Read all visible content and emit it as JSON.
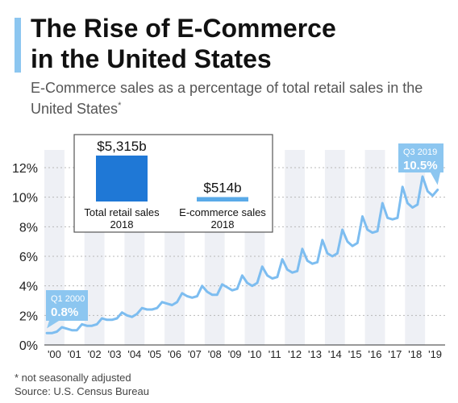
{
  "header": {
    "title_line1": "The Rise of E-Commerce",
    "title_line2": "in the United States",
    "subtitle": "E-Commerce sales as a percentage of total retail sales in the United States",
    "subtitle_mark": "*"
  },
  "inset": {
    "bars": [
      {
        "value_label": "$5,315b",
        "label_line1": "Total retail sales",
        "label_line2": "2018",
        "value": 5315
      },
      {
        "value_label": "$514b",
        "label_line1": "E-commerce sales",
        "label_line2": "2018",
        "value": 514
      }
    ],
    "colors": {
      "total": "#1f78d6",
      "ecommerce": "#5aaae8"
    }
  },
  "footer": {
    "note": "* not seasonally adjusted",
    "source": "Source: U.S. Census Bureau"
  },
  "colors": {
    "line": "#7dbdf0",
    "callout": "#8cc6f0",
    "band": "#eef0f5",
    "grid": "#b8b8b8",
    "text": "#111111"
  },
  "chart_data": {
    "type": "line",
    "title": "The Rise of E-Commerce in the United States",
    "ylabel": "",
    "xlabel": "",
    "ylim": [
      0,
      12
    ],
    "y_ticks": [
      0,
      2,
      4,
      6,
      8,
      10,
      12
    ],
    "y_tick_labels": [
      "0%",
      "2%",
      "4%",
      "6%",
      "8%",
      "10%",
      "12%"
    ],
    "x_tick_labels": [
      "'00",
      "'01",
      "'02",
      "'03",
      "'04",
      "'05",
      "'06",
      "'07",
      "'08",
      "'09",
      "'10",
      "'11",
      "'12",
      "'13",
      "'14",
      "'15",
      "'16",
      "'17",
      "'18",
      "'19"
    ],
    "grid": true,
    "series": [
      {
        "values": [
          0.8,
          0.8,
          0.9,
          1.2,
          1.1,
          1.0,
          1.0,
          1.4,
          1.3,
          1.3,
          1.4,
          1.8,
          1.7,
          1.7,
          1.8,
          2.2,
          2.0,
          1.9,
          2.1,
          2.5,
          2.4,
          2.4,
          2.5,
          2.9,
          2.8,
          2.7,
          2.9,
          3.5,
          3.3,
          3.2,
          3.3,
          4.0,
          3.6,
          3.4,
          3.4,
          4.1,
          3.9,
          3.7,
          3.8,
          4.7,
          4.2,
          4.0,
          4.2,
          5.3,
          4.7,
          4.5,
          4.6,
          5.8,
          5.1,
          4.9,
          5.0,
          6.5,
          5.7,
          5.5,
          5.6,
          7.1,
          6.2,
          6.0,
          6.2,
          7.8,
          7.0,
          6.7,
          6.9,
          8.7,
          7.8,
          7.6,
          7.7,
          9.6,
          8.6,
          8.5,
          8.6,
          10.7,
          9.6,
          9.3,
          9.5,
          11.4,
          10.4,
          10.1,
          10.5
        ]
      }
    ],
    "annotations": [
      {
        "period": "Q1 2000",
        "value_label": "0.8%",
        "index": 0,
        "value": 0.8
      },
      {
        "period": "Q3 2019",
        "value_label": "10.5%",
        "index": 78,
        "value": 10.5
      }
    ]
  }
}
